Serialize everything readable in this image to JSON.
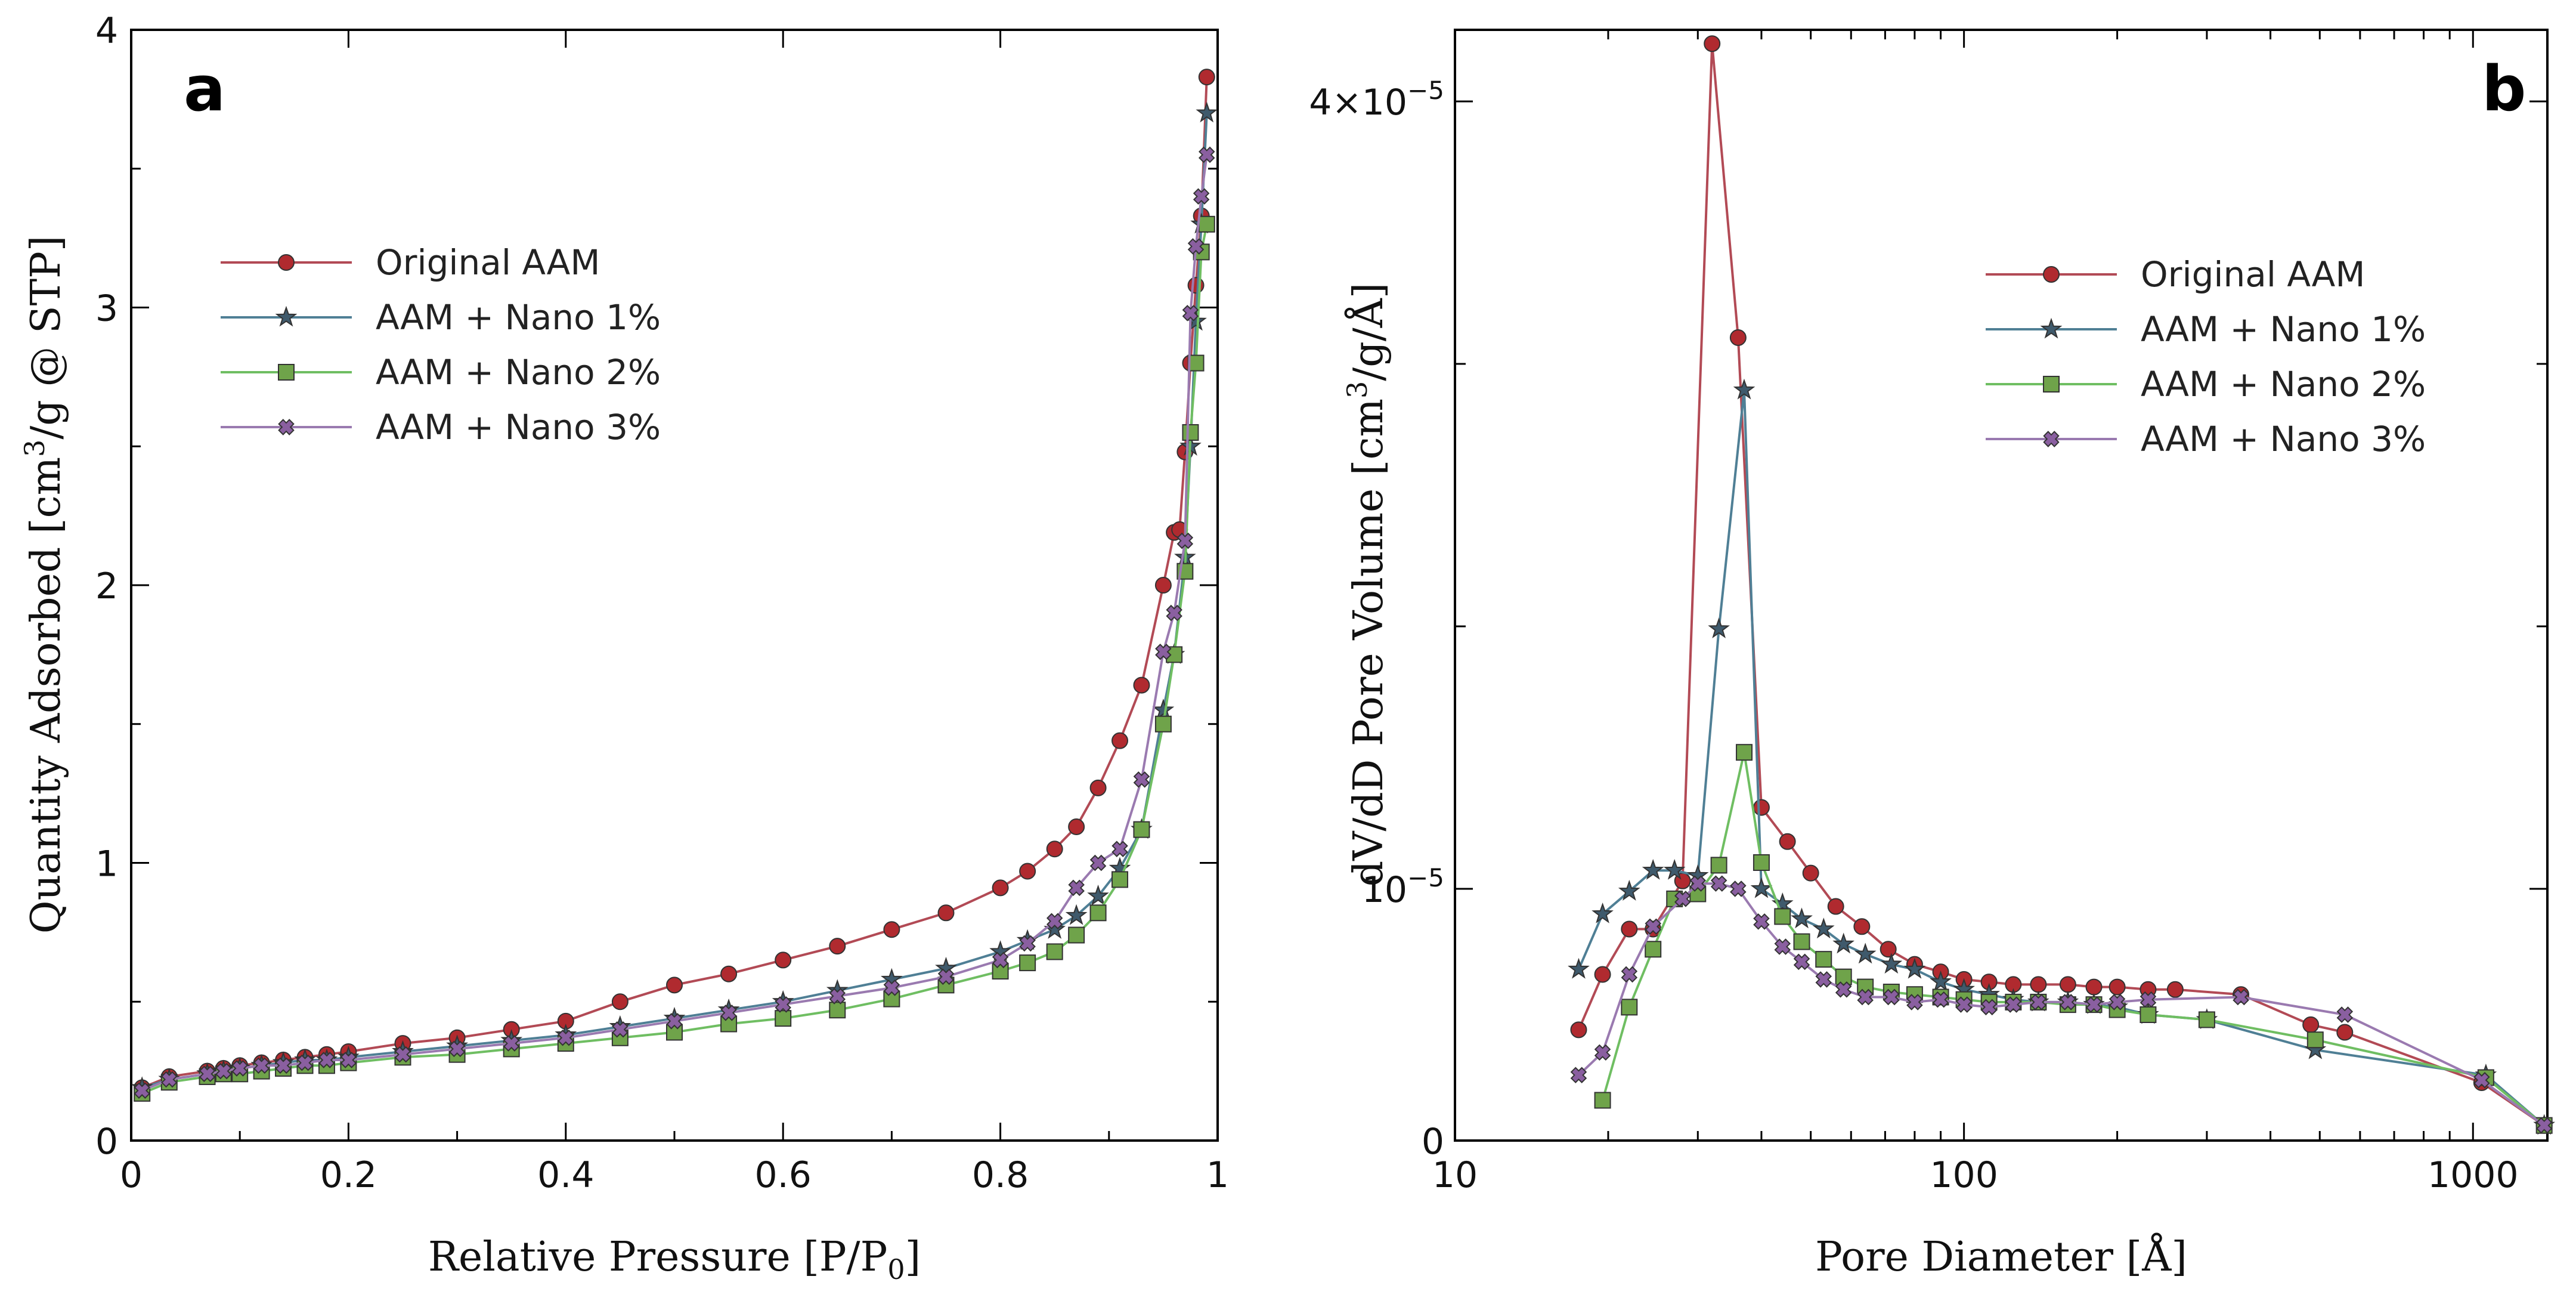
{
  "series_styles": [
    {
      "name": "Original AAM",
      "line": "#b24a55",
      "fill": "#b02a2f",
      "marker": "circle"
    },
    {
      "name": "AAM  + Nano 1%",
      "line": "#4f7f95",
      "fill": "#3f5a6c",
      "marker": "star"
    },
    {
      "name": "AAM  + Nano 2%",
      "line": "#6fbe62",
      "fill": "#6fa34a",
      "marker": "square"
    },
    {
      "name": "AAM  + Nano 3%",
      "line": "#9a7ab0",
      "fill": "#8a5fa0",
      "marker": "cross"
    }
  ],
  "chart_data": [
    {
      "panel": "a",
      "type": "line",
      "xlabel": "Relative Pressure [P/P0]",
      "ylabel": "Quantity Adsorbed [cm3/g @ STP]",
      "xlim": [
        0,
        1
      ],
      "ylim": [
        0,
        4
      ],
      "xticks": [
        "0",
        "0.2",
        "0.4",
        "0.6",
        "0.8",
        "1"
      ],
      "yticks": [
        "0",
        "1",
        "2",
        "3",
        "4"
      ],
      "legend": [
        "Original AAM",
        "AAM  + Nano 1%",
        "AAM  + Nano 2%",
        "AAM  + Nano 3%"
      ],
      "legend_position": "upper-left",
      "series": [
        {
          "name": "Original AAM",
          "x": [
            0.01,
            0.035,
            0.07,
            0.085,
            0.1,
            0.12,
            0.14,
            0.16,
            0.18,
            0.2,
            0.25,
            0.3,
            0.35,
            0.4,
            0.45,
            0.5,
            0.55,
            0.6,
            0.65,
            0.7,
            0.75,
            0.8,
            0.825,
            0.85,
            0.87,
            0.89,
            0.91,
            0.93,
            0.95,
            0.96,
            0.965,
            0.97,
            0.975,
            0.98,
            0.985,
            0.99
          ],
          "y": [
            0.19,
            0.23,
            0.25,
            0.26,
            0.27,
            0.28,
            0.29,
            0.3,
            0.31,
            0.32,
            0.35,
            0.37,
            0.4,
            0.43,
            0.5,
            0.56,
            0.6,
            0.65,
            0.7,
            0.76,
            0.82,
            0.91,
            0.97,
            1.05,
            1.13,
            1.27,
            1.44,
            1.64,
            2.0,
            2.19,
            2.2,
            2.48,
            2.8,
            3.08,
            3.33,
            3.83
          ]
        },
        {
          "name": "AAM  + Nano 1%",
          "x": [
            0.01,
            0.035,
            0.07,
            0.085,
            0.1,
            0.12,
            0.14,
            0.16,
            0.18,
            0.2,
            0.25,
            0.3,
            0.35,
            0.4,
            0.45,
            0.5,
            0.55,
            0.6,
            0.65,
            0.7,
            0.75,
            0.8,
            0.825,
            0.85,
            0.87,
            0.89,
            0.91,
            0.93,
            0.95,
            0.96,
            0.97,
            0.975,
            0.98,
            0.985,
            0.99
          ],
          "y": [
            0.19,
            0.22,
            0.24,
            0.25,
            0.26,
            0.27,
            0.28,
            0.29,
            0.29,
            0.3,
            0.32,
            0.34,
            0.36,
            0.38,
            0.41,
            0.44,
            0.47,
            0.5,
            0.54,
            0.58,
            0.62,
            0.68,
            0.72,
            0.76,
            0.81,
            0.88,
            0.98,
            1.12,
            1.55,
            1.75,
            2.1,
            2.5,
            2.95,
            3.3,
            3.7
          ]
        },
        {
          "name": "AAM  + Nano 2%",
          "x": [
            0.01,
            0.035,
            0.07,
            0.085,
            0.1,
            0.12,
            0.14,
            0.16,
            0.18,
            0.2,
            0.25,
            0.3,
            0.35,
            0.4,
            0.45,
            0.5,
            0.55,
            0.6,
            0.65,
            0.7,
            0.75,
            0.8,
            0.825,
            0.85,
            0.87,
            0.89,
            0.91,
            0.93,
            0.95,
            0.96,
            0.97,
            0.975,
            0.98,
            0.985,
            0.99
          ],
          "y": [
            0.17,
            0.21,
            0.23,
            0.24,
            0.24,
            0.25,
            0.26,
            0.27,
            0.27,
            0.28,
            0.3,
            0.31,
            0.33,
            0.35,
            0.37,
            0.39,
            0.42,
            0.44,
            0.47,
            0.51,
            0.56,
            0.61,
            0.64,
            0.68,
            0.74,
            0.82,
            0.94,
            1.12,
            1.5,
            1.75,
            2.05,
            2.55,
            2.8,
            3.2,
            3.3
          ]
        },
        {
          "name": "AAM  + Nano 3%",
          "x": [
            0.01,
            0.035,
            0.07,
            0.085,
            0.1,
            0.12,
            0.14,
            0.16,
            0.18,
            0.2,
            0.25,
            0.3,
            0.35,
            0.4,
            0.45,
            0.5,
            0.55,
            0.6,
            0.65,
            0.7,
            0.75,
            0.8,
            0.825,
            0.85,
            0.87,
            0.89,
            0.91,
            0.93,
            0.95,
            0.96,
            0.97,
            0.975,
            0.98,
            0.985,
            0.99
          ],
          "y": [
            0.18,
            0.22,
            0.24,
            0.25,
            0.26,
            0.27,
            0.27,
            0.28,
            0.29,
            0.29,
            0.31,
            0.33,
            0.35,
            0.37,
            0.4,
            0.43,
            0.46,
            0.49,
            0.52,
            0.55,
            0.59,
            0.65,
            0.71,
            0.79,
            0.91,
            1.0,
            1.05,
            1.3,
            1.76,
            1.9,
            2.16,
            2.98,
            3.22,
            3.4,
            3.55
          ]
        }
      ]
    },
    {
      "panel": "b",
      "type": "line",
      "xscale": "log",
      "xlabel": "Pore Diameter [Å]",
      "ylabel": "dV/dD Pore Volume [cm3/g/Å]",
      "xlim": [
        10,
        1400
      ],
      "ylim": [
        0,
        4.2e-05
      ],
      "xticks": [
        "10",
        "100",
        "1000"
      ],
      "ytick_values": [
        0,
        1e-05,
        4e-05
      ],
      "legend": [
        "Original AAM",
        "AAM  + Nano 1%",
        "AAM  + Nano 2%",
        "AAM  + Nano 3%"
      ],
      "legend_position": "upper-right",
      "series": [
        {
          "name": "Original AAM",
          "x": [
            17.5,
            19.5,
            22,
            24.5,
            28,
            32,
            36,
            40,
            45,
            50,
            56,
            63,
            71,
            80,
            90,
            100,
            112,
            125,
            140,
            160,
            180,
            200,
            230,
            260,
            350,
            480,
            560,
            1040,
            1380
          ],
          "y": [
            4.4e-06,
            6.6e-06,
            8.4e-06,
            8.4e-06,
            1.03e-05,
            4.22e-05,
            3.1e-05,
            1.31e-05,
            1.18e-05,
            1.06e-05,
            9.3e-06,
            8.5e-06,
            7.6e-06,
            7e-06,
            6.7e-06,
            6.4e-06,
            6.3e-06,
            6.2e-06,
            6.2e-06,
            6.2e-06,
            6.1e-06,
            6.1e-06,
            6e-06,
            6e-06,
            5.8e-06,
            4.6e-06,
            4.3e-06,
            2.3e-06,
            6e-07
          ]
        },
        {
          "name": "AAM  + Nano 1%",
          "x": [
            17.5,
            19.5,
            22,
            24.5,
            27,
            30,
            33,
            37,
            40,
            44,
            48,
            53,
            58,
            64,
            72,
            80,
            90,
            100,
            112,
            125,
            140,
            160,
            180,
            200,
            230,
            300,
            490,
            1060,
            1380
          ],
          "y": [
            6.8e-06,
            9e-06,
            9.9e-06,
            1.07e-05,
            1.07e-05,
            1.05e-05,
            1.99e-05,
            2.9e-05,
            1e-05,
            9.4e-06,
            8.8e-06,
            8.4e-06,
            7.8e-06,
            7.4e-06,
            7e-06,
            6.8e-06,
            6.3e-06,
            6e-06,
            5.8e-06,
            5.6e-06,
            5.5e-06,
            5.5e-06,
            5.4e-06,
            5.3e-06,
            5e-06,
            4.8e-06,
            3.6e-06,
            2.6e-06,
            6e-07
          ]
        },
        {
          "name": "AAM  + Nano 2%",
          "x": [
            19.5,
            22,
            24.5,
            27,
            30,
            33,
            37,
            40,
            44,
            48,
            53,
            58,
            64,
            72,
            80,
            90,
            100,
            112,
            125,
            140,
            160,
            180,
            200,
            230,
            300,
            490,
            1060,
            1380
          ],
          "y": [
            1.6e-06,
            5.3e-06,
            7.6e-06,
            9.6e-06,
            9.8e-06,
            1.09e-05,
            1.52e-05,
            1.1e-05,
            8.9e-06,
            7.9e-06,
            7.2e-06,
            6.5e-06,
            6.1e-06,
            5.9e-06,
            5.8e-06,
            5.7e-06,
            5.6e-06,
            5.5e-06,
            5.5e-06,
            5.5e-06,
            5.4e-06,
            5.4e-06,
            5.2e-06,
            5e-06,
            4.8e-06,
            4e-06,
            2.5e-06,
            6e-07
          ]
        },
        {
          "name": "AAM  + Nano 3%",
          "x": [
            17.5,
            19.5,
            22,
            24.5,
            28,
            30,
            33,
            36,
            40,
            44,
            48,
            53,
            58,
            64,
            72,
            80,
            90,
            100,
            112,
            125,
            140,
            160,
            180,
            200,
            230,
            350,
            560,
            1040,
            1380
          ],
          "y": [
            2.6e-06,
            3.5e-06,
            6.6e-06,
            8.5e-06,
            9.6e-06,
            1.02e-05,
            1.02e-05,
            1e-05,
            8.7e-06,
            7.7e-06,
            7.1e-06,
            6.4e-06,
            6e-06,
            5.7e-06,
            5.7e-06,
            5.5e-06,
            5.6e-06,
            5.4e-06,
            5.3e-06,
            5.4e-06,
            5.5e-06,
            5.5e-06,
            5.4e-06,
            5.5e-06,
            5.6e-06,
            5.7e-06,
            5e-06,
            2.4e-06,
            6e-07
          ]
        }
      ]
    }
  ]
}
